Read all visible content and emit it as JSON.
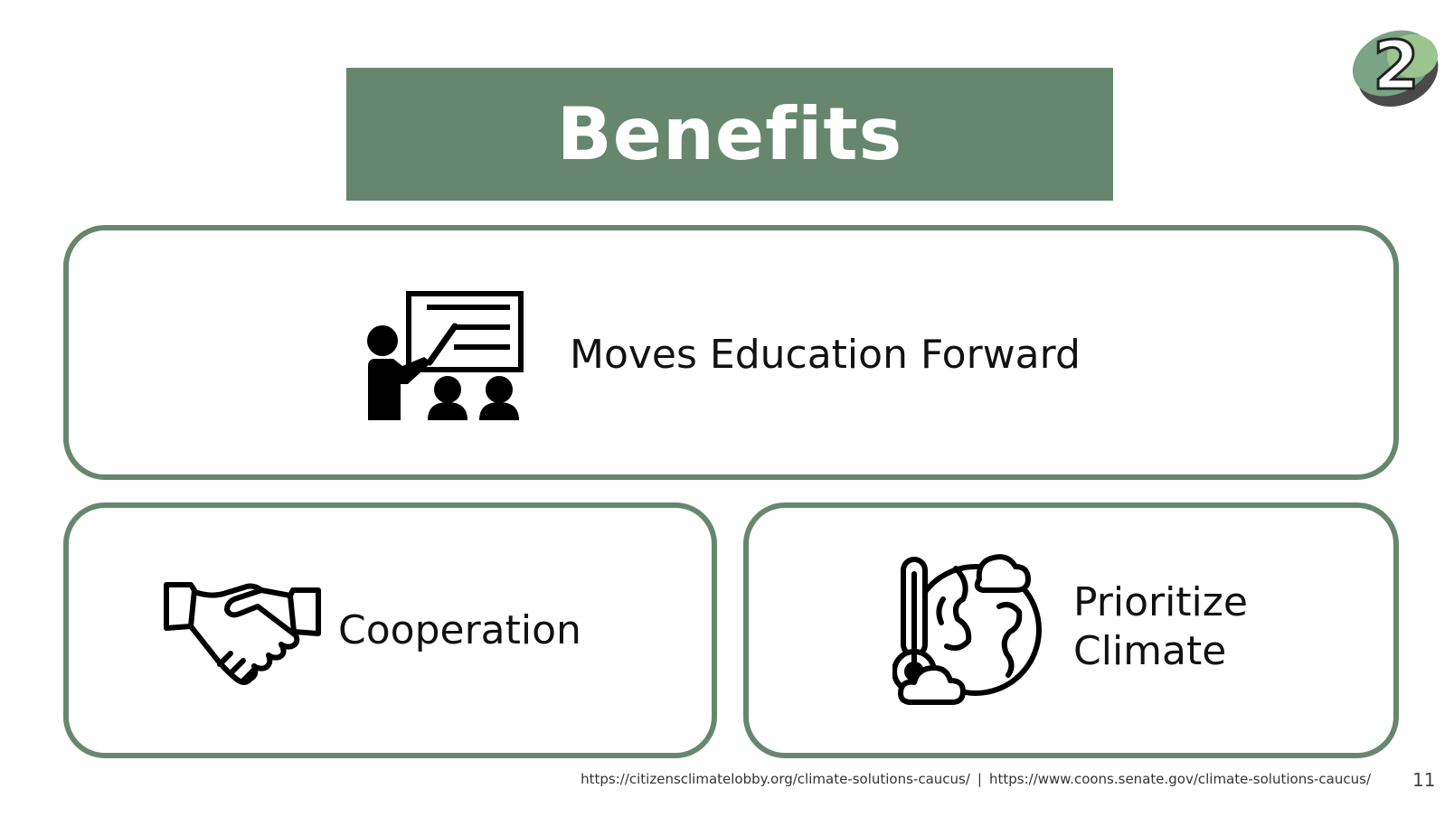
{
  "slide": {
    "title": "Benefits",
    "badge_number": "2",
    "page_number": "11"
  },
  "cards": {
    "education": {
      "label": "Moves Education Forward",
      "icon": "teacher-presentation-icon"
    },
    "cooperation": {
      "label": "Cooperation",
      "icon": "handshake-icon"
    },
    "climate": {
      "line1": "Prioritize",
      "line2": "Climate",
      "icon": "climate-globe-icon"
    }
  },
  "footer": {
    "source1": "https://citizensclimatelobby.org/climate-solutions-caucus/",
    "separator": "|",
    "source2": "https://www.coons.senate.gov/climate-solutions-caucus/"
  },
  "colors": {
    "accent": "#66876e",
    "badge_light": "#86b48c",
    "badge_dark": "#4a4a4a",
    "text": "#111111"
  }
}
